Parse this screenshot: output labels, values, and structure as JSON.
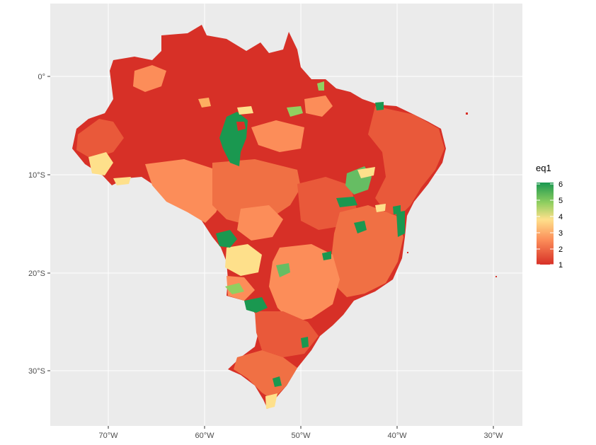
{
  "map": {
    "x_ticks": [
      "70°W",
      "60°W",
      "50°W",
      "40°W",
      "30°W"
    ],
    "y_ticks": [
      "0°",
      "10°S",
      "20°S",
      "30°S"
    ],
    "legend": {
      "title": "eq1",
      "labels": [
        "6",
        "5",
        "4",
        "3",
        "2",
        "1"
      ],
      "range": [
        1,
        6
      ]
    },
    "colors": {
      "panel": "#ebebeb",
      "grid": "#ffffff",
      "scale_low": "#d73027",
      "scale_mid_low": "#fc8d59",
      "scale_mid": "#fee08b",
      "scale_mid_high": "#d9ef8b",
      "scale_high": "#1a9850"
    }
  }
}
